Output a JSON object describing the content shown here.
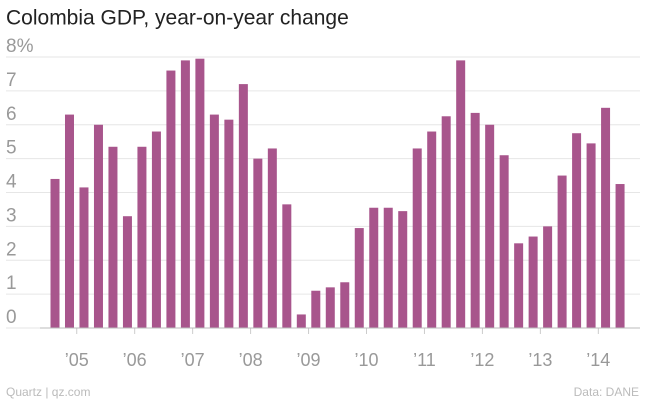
{
  "chart_data": {
    "type": "bar",
    "title": "Colombia GDP, year-on-year change",
    "categories": [
      null,
      "’05",
      null,
      null,
      null,
      "’06",
      null,
      null,
      null,
      "’07",
      null,
      null,
      null,
      "’08",
      null,
      null,
      null,
      "’09",
      null,
      null,
      null,
      "’10",
      null,
      null,
      null,
      "’11",
      null,
      null,
      null,
      "’12",
      null,
      null,
      null,
      "’13",
      null,
      null,
      null,
      "’14",
      null,
      null
    ],
    "values": [
      4.4,
      6.3,
      4.15,
      6.0,
      5.35,
      3.3,
      5.35,
      5.8,
      7.6,
      7.9,
      7.95,
      6.3,
      6.15,
      7.2,
      5.0,
      5.3,
      3.65,
      0.4,
      1.1,
      1.2,
      1.35,
      2.95,
      3.55,
      3.55,
      3.45,
      5.3,
      5.8,
      6.25,
      7.9,
      6.35,
      6.0,
      5.1,
      2.5,
      2.7,
      3.0,
      4.5,
      5.75,
      5.45,
      6.5,
      4.25
    ],
    "color": "#a8558c",
    "ylim": [
      0,
      8
    ],
    "yticks": [
      0,
      1,
      2,
      3,
      4,
      5,
      6,
      7,
      {
        "value": 8,
        "label": "8%"
      }
    ],
    "grid": true,
    "source": "Data: DANE",
    "credit": "Quartz | qz.com"
  }
}
